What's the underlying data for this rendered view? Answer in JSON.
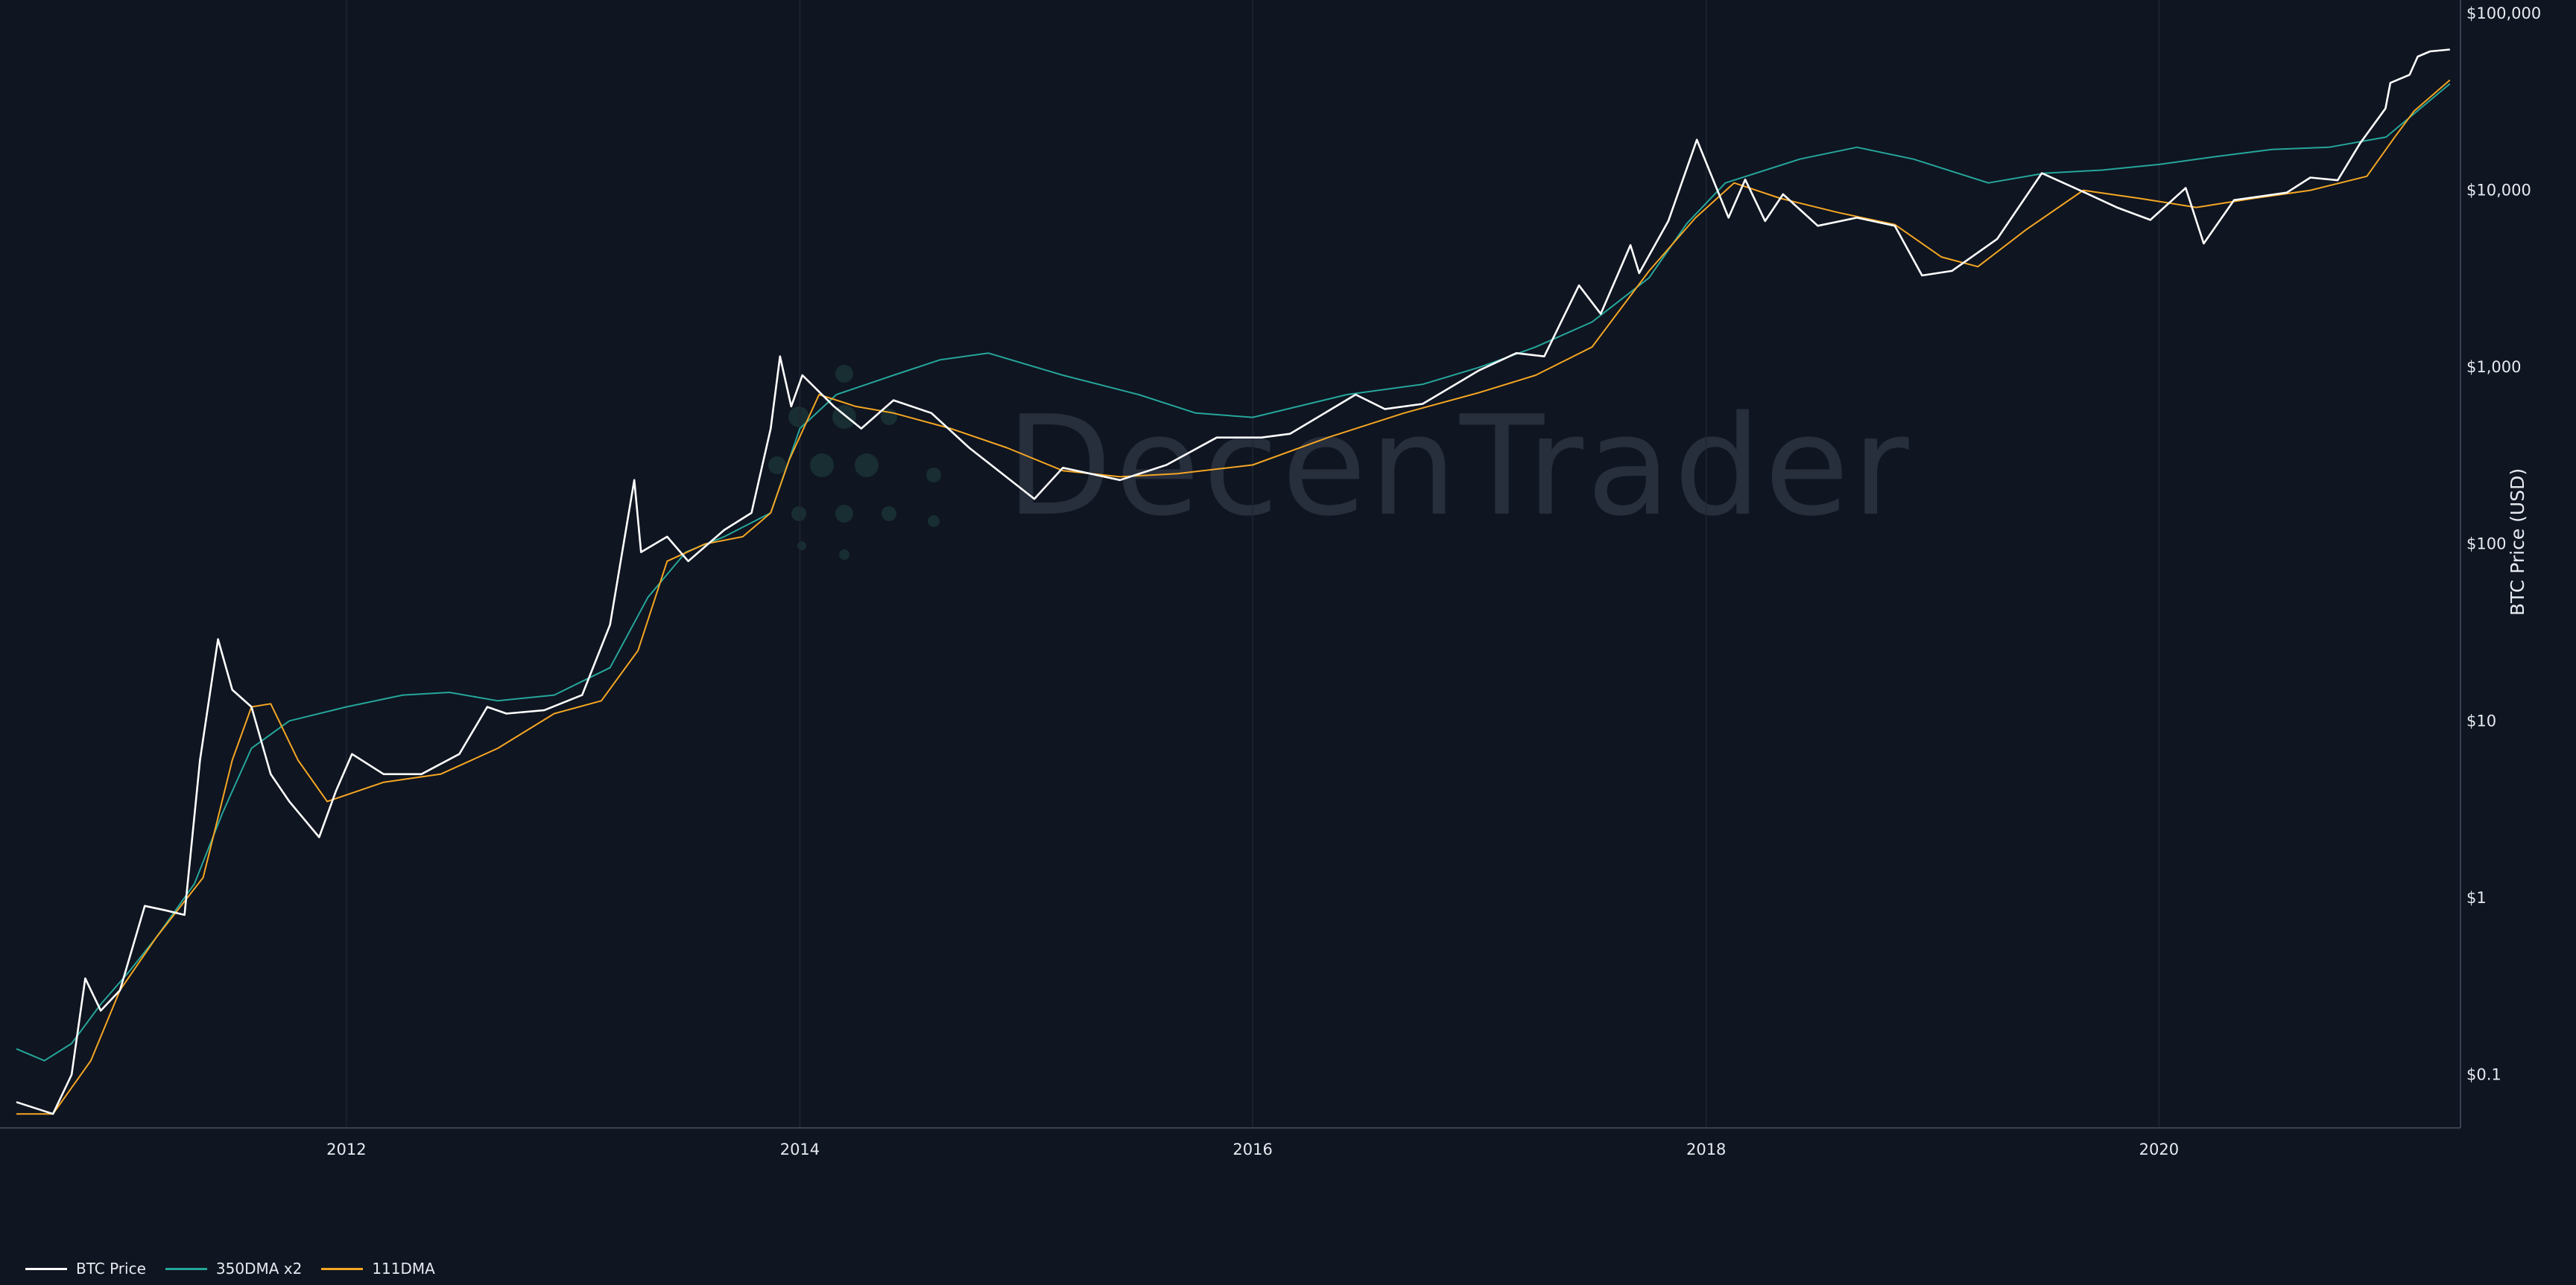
{
  "chart_data": {
    "type": "line",
    "y_scale": "log",
    "ylabel": "BTC Price (USD)",
    "xlabel": "",
    "title": "",
    "ylim": [
      0.05,
      100000
    ],
    "xlim": [
      "2010-07-18",
      "2021-05-01"
    ],
    "x_tick_labels": [
      "2012",
      "2014",
      "2016",
      "2018",
      "2020"
    ],
    "y_tick_values": [
      0.1,
      1,
      10,
      100,
      1000,
      10000,
      100000
    ],
    "y_tick_labels": [
      "$0.1",
      "$1",
      "$10",
      "$100",
      "$1,000",
      "$10,000",
      "$100,000"
    ],
    "grid": "vertical",
    "legend_position": "bottom-left",
    "watermark": "DecenTrader",
    "colors": {
      "background": "#0f1521",
      "price": "#ffffff",
      "dma350x2": "#26a69a",
      "dma111": "#f5a623"
    },
    "series": [
      {
        "name": "BTC Price",
        "color": "#ffffff",
        "x": [
          "2010-07-18",
          "2010-09-15",
          "2010-10-15",
          "2010-11-06",
          "2010-12-01",
          "2011-01-01",
          "2011-02-10",
          "2011-03-15",
          "2011-04-15",
          "2011-05-10",
          "2011-06-08",
          "2011-07-01",
          "2011-08-01",
          "2011-09-01",
          "2011-10-01",
          "2011-11-18",
          "2011-12-15",
          "2012-01-10",
          "2012-03-01",
          "2012-05-01",
          "2012-07-01",
          "2012-08-15",
          "2012-09-15",
          "2012-11-15",
          "2013-01-15",
          "2013-03-01",
          "2013-04-09",
          "2013-04-20",
          "2013-06-01",
          "2013-07-05",
          "2013-09-01",
          "2013-10-15",
          "2013-11-15",
          "2013-11-30",
          "2013-12-18",
          "2014-01-05",
          "2014-02-25",
          "2014-04-10",
          "2014-06-01",
          "2014-08-01",
          "2014-10-01",
          "2015-01-14",
          "2015-03-01",
          "2015-06-01",
          "2015-08-15",
          "2015-11-04",
          "2016-01-15",
          "2016-03-01",
          "2016-06-15",
          "2016-08-01",
          "2016-10-01",
          "2016-12-31",
          "2017-03-01",
          "2017-04-15",
          "2017-06-10",
          "2017-07-15",
          "2017-09-01",
          "2017-09-15",
          "2017-11-01",
          "2017-12-17",
          "2018-02-06",
          "2018-03-05",
          "2018-04-06",
          "2018-05-05",
          "2018-06-30",
          "2018-09-01",
          "2018-11-01",
          "2018-12-15",
          "2019-02-01",
          "2019-04-15",
          "2019-06-26",
          "2019-09-01",
          "2019-10-25",
          "2019-12-18",
          "2020-02-13",
          "2020-03-13",
          "2020-05-01",
          "2020-07-25",
          "2020-09-01",
          "2020-10-15",
          "2020-11-20",
          "2020-12-31",
          "2021-01-08",
          "2021-02-08",
          "2021-02-21",
          "2021-03-13",
          "2021-04-14"
        ],
        "values": [
          0.07,
          0.06,
          0.1,
          0.35,
          0.23,
          0.3,
          0.9,
          0.85,
          0.8,
          6.0,
          29,
          15,
          12,
          5.0,
          3.5,
          2.2,
          4.0,
          6.5,
          5.0,
          5.0,
          6.5,
          12,
          11,
          11.5,
          14,
          35,
          230,
          90,
          110,
          80,
          120,
          150,
          450,
          1150,
          600,
          900,
          600,
          450,
          650,
          550,
          350,
          180,
          270,
          230,
          280,
          400,
          400,
          420,
          700,
          580,
          620,
          960,
          1200,
          1150,
          2900,
          2000,
          4900,
          3400,
          6700,
          19300,
          7000,
          11500,
          6700,
          9500,
          6300,
          7000,
          6300,
          3300,
          3500,
          5300,
          12500,
          9800,
          8000,
          6800,
          10300,
          5000,
          8800,
          9700,
          11800,
          11400,
          18400,
          29000,
          40500,
          45000,
          57000,
          61000,
          62500
        ]
      },
      {
        "name": "350DMA x2",
        "color": "#26a69a",
        "x": [
          "2010-07-18",
          "2010-09-01",
          "2010-10-15",
          "2010-12-01",
          "2011-01-15",
          "2011-03-01",
          "2011-05-01",
          "2011-06-15",
          "2011-08-01",
          "2011-10-01",
          "2012-01-01",
          "2012-04-01",
          "2012-06-15",
          "2012-09-01",
          "2012-12-01",
          "2013-03-01",
          "2013-05-01",
          "2013-07-01",
          "2013-09-01",
          "2013-11-15",
          "2014-01-01",
          "2014-03-01",
          "2014-06-01",
          "2014-08-15",
          "2014-11-01",
          "2015-03-01",
          "2015-07-01",
          "2015-10-01",
          "2016-01-01",
          "2016-06-01",
          "2016-10-01",
          "2017-01-01",
          "2017-04-01",
          "2017-07-01",
          "2017-10-01",
          "2017-12-01",
          "2018-02-01",
          "2018-06-01",
          "2018-09-01",
          "2018-12-01",
          "2019-04-01",
          "2019-07-01",
          "2019-10-01",
          "2020-01-01",
          "2020-04-01",
          "2020-07-01",
          "2020-10-01",
          "2021-01-01",
          "2021-04-14"
        ],
        "values": [
          0.14,
          0.12,
          0.15,
          0.25,
          0.38,
          0.6,
          1.2,
          3.0,
          7.0,
          10,
          12,
          14,
          14.5,
          13,
          14,
          20,
          50,
          90,
          110,
          150,
          450,
          700,
          900,
          1100,
          1200,
          900,
          700,
          550,
          520,
          700,
          800,
          1000,
          1300,
          1800,
          3200,
          6500,
          11000,
          15000,
          17500,
          15000,
          11000,
          12500,
          13000,
          14000,
          15500,
          17000,
          17500,
          20000,
          40000
        ]
      },
      {
        "name": "111DMA",
        "color": "#f5a623",
        "x": [
          "2010-07-18",
          "2010-09-15",
          "2010-11-15",
          "2011-01-01",
          "2011-03-01",
          "2011-05-15",
          "2011-07-01",
          "2011-08-01",
          "2011-09-01",
          "2011-10-15",
          "2011-12-01",
          "2012-03-01",
          "2012-06-01",
          "2012-09-01",
          "2012-12-01",
          "2013-02-15",
          "2013-04-15",
          "2013-06-01",
          "2013-08-01",
          "2013-10-01",
          "2013-11-15",
          "2013-12-15",
          "2014-02-01",
          "2014-04-01",
          "2014-06-01",
          "2014-09-01",
          "2014-12-01",
          "2015-03-01",
          "2015-06-01",
          "2015-09-01",
          "2016-01-01",
          "2016-05-01",
          "2016-09-01",
          "2017-01-01",
          "2017-04-01",
          "2017-07-01",
          "2017-10-01",
          "2017-12-15",
          "2018-02-15",
          "2018-05-01",
          "2018-08-01",
          "2018-11-01",
          "2019-01-15",
          "2019-03-15",
          "2019-06-01",
          "2019-09-01",
          "2019-12-01",
          "2020-03-01",
          "2020-06-01",
          "2020-09-01",
          "2020-12-01",
          "2021-01-15",
          "2021-02-15",
          "2021-04-14"
        ],
        "values": [
          0.06,
          0.06,
          0.12,
          0.3,
          0.6,
          1.3,
          6.0,
          12,
          12.5,
          6.0,
          3.5,
          4.5,
          5.0,
          7.0,
          11,
          13,
          25,
          80,
          100,
          110,
          150,
          300,
          700,
          600,
          550,
          450,
          350,
          260,
          240,
          250,
          280,
          400,
          550,
          720,
          900,
          1300,
          3500,
          7000,
          11000,
          9000,
          7500,
          6400,
          4200,
          3700,
          6000,
          10000,
          9000,
          8000,
          9000,
          10000,
          12000,
          20000,
          28000,
          42000
        ]
      }
    ]
  }
}
